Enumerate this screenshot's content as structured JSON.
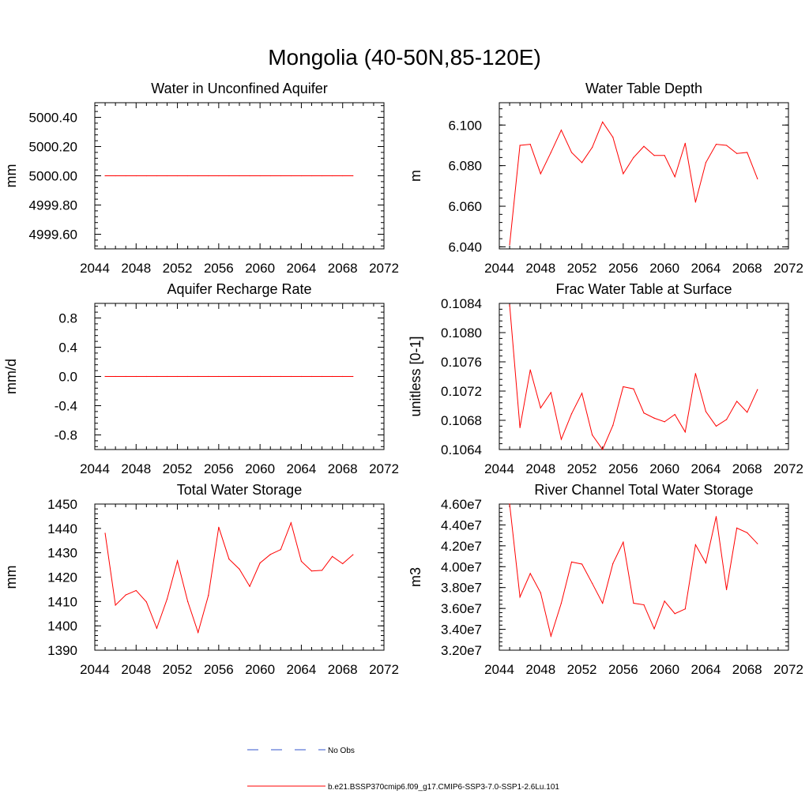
{
  "figure": {
    "title": "Mongolia (40-50N,85-120E)"
  },
  "colors": {
    "model_line": "#ff0000",
    "obs_line": "#3355cc",
    "axis": "#000000"
  },
  "legend": {
    "entries": [
      {
        "label": "No Obs",
        "style": "dashed",
        "color": "#3355cc"
      },
      {
        "label": "b.e21.BSSP370cmip6.f09_g17.CMIP6-SSP3-7.0-SSP1-2.6Lu.101",
        "style": "solid",
        "color": "#ff0000"
      }
    ]
  },
  "chart_data": [
    {
      "type": "line",
      "title": "Water in Unconfined Aquifer",
      "ylabel": "mm",
      "xlim": [
        2044,
        2072
      ],
      "ylim": [
        4999.5,
        5000.5
      ],
      "xticks": [
        2044,
        2048,
        2052,
        2056,
        2060,
        2064,
        2068,
        2072
      ],
      "yticks": [
        4999.6,
        4999.8,
        5000.0,
        5000.2,
        5000.4
      ],
      "ytick_labels": [
        "4999.60",
        "4999.80",
        "5000.00",
        "5000.20",
        "5000.40"
      ],
      "x": [
        2045,
        2046,
        2047,
        2048,
        2049,
        2050,
        2051,
        2052,
        2053,
        2054,
        2055,
        2056,
        2057,
        2058,
        2059,
        2060,
        2061,
        2062,
        2063,
        2064,
        2065,
        2066,
        2067,
        2068,
        2069
      ],
      "series": [
        {
          "values": [
            5000,
            5000,
            5000,
            5000,
            5000,
            5000,
            5000,
            5000,
            5000,
            5000,
            5000,
            5000,
            5000,
            5000,
            5000,
            5000,
            5000,
            5000,
            5000,
            5000,
            5000,
            5000,
            5000,
            5000,
            5000
          ]
        }
      ]
    },
    {
      "type": "line",
      "title": "Water Table Depth",
      "ylabel": "m",
      "xlim": [
        2044,
        2072
      ],
      "ylim": [
        6.039,
        6.111
      ],
      "xticks": [
        2044,
        2048,
        2052,
        2056,
        2060,
        2064,
        2068,
        2072
      ],
      "yticks": [
        6.04,
        6.06,
        6.08,
        6.1
      ],
      "ytick_labels": [
        "6.040",
        "6.060",
        "6.080",
        "6.100"
      ],
      "x": [
        2045,
        2046,
        2047,
        2048,
        2049,
        2050,
        2051,
        2052,
        2053,
        2054,
        2055,
        2056,
        2057,
        2058,
        2059,
        2060,
        2061,
        2062,
        2063,
        2064,
        2065,
        2066,
        2067,
        2068,
        2069
      ],
      "series": [
        {
          "values": [
            6.041,
            6.09,
            6.0905,
            6.076,
            6.0865,
            6.0975,
            6.0865,
            6.0815,
            6.089,
            6.1015,
            6.094,
            6.076,
            6.084,
            6.0895,
            6.085,
            6.085,
            6.0745,
            6.091,
            6.062,
            6.0815,
            6.0905,
            6.09,
            6.086,
            6.0865,
            6.0735
          ]
        }
      ]
    },
    {
      "type": "line",
      "title": "Aquifer Recharge Rate",
      "ylabel": "mm/d",
      "xlim": [
        2044,
        2072
      ],
      "ylim": [
        -1.0,
        1.0
      ],
      "xticks": [
        2044,
        2048,
        2052,
        2056,
        2060,
        2064,
        2068,
        2072
      ],
      "yticks": [
        -0.8,
        -0.4,
        0.0,
        0.4,
        0.8
      ],
      "ytick_labels": [
        "-0.8",
        "-0.4",
        "0.0",
        "0.4",
        "0.8"
      ],
      "x": [
        2045,
        2046,
        2047,
        2048,
        2049,
        2050,
        2051,
        2052,
        2053,
        2054,
        2055,
        2056,
        2057,
        2058,
        2059,
        2060,
        2061,
        2062,
        2063,
        2064,
        2065,
        2066,
        2067,
        2068,
        2069
      ],
      "series": [
        {
          "values": [
            0,
            0,
            0,
            0,
            0,
            0,
            0,
            0,
            0,
            0,
            0,
            0,
            0,
            0,
            0,
            0,
            0,
            0,
            0,
            0,
            0,
            0,
            0,
            0,
            0
          ]
        }
      ]
    },
    {
      "type": "line",
      "title": "Frac Water Table at Surface",
      "ylabel": "unitless [0-1]",
      "xlim": [
        2044,
        2072
      ],
      "ylim": [
        0.1064,
        0.1084
      ],
      "xticks": [
        2044,
        2048,
        2052,
        2056,
        2060,
        2064,
        2068,
        2072
      ],
      "yticks": [
        0.1064,
        0.1068,
        0.1072,
        0.1076,
        0.108,
        0.1084
      ],
      "ytick_labels": [
        "0.1064",
        "0.1068",
        "0.1072",
        "0.1076",
        "0.1080",
        "0.1084"
      ],
      "x": [
        2045,
        2046,
        2047,
        2048,
        2049,
        2050,
        2051,
        2052,
        2053,
        2054,
        2055,
        2056,
        2057,
        2058,
        2059,
        2060,
        2061,
        2062,
        2063,
        2064,
        2065,
        2066,
        2067,
        2068,
        2069
      ],
      "series": [
        {
          "values": [
            0.10838,
            0.1067,
            0.10749,
            0.10697,
            0.10718,
            0.10654,
            0.10689,
            0.10717,
            0.1066,
            0.1064,
            0.10673,
            0.10726,
            0.10723,
            0.1069,
            0.10683,
            0.10678,
            0.10688,
            0.10664,
            0.10744,
            0.10692,
            0.10672,
            0.10681,
            0.10706,
            0.10691,
            0.10722
          ]
        }
      ]
    },
    {
      "type": "line",
      "title": "Total Water Storage",
      "ylabel": "mm",
      "xlim": [
        2044,
        2072
      ],
      "ylim": [
        1390,
        1450
      ],
      "xticks": [
        2044,
        2048,
        2052,
        2056,
        2060,
        2064,
        2068,
        2072
      ],
      "yticks": [
        1390,
        1400,
        1410,
        1420,
        1430,
        1440,
        1450
      ],
      "ytick_labels": [
        "1390",
        "1400",
        "1410",
        "1420",
        "1430",
        "1440",
        "1450"
      ],
      "x": [
        2045,
        2046,
        2047,
        2048,
        2049,
        2050,
        2051,
        2052,
        2053,
        2054,
        2055,
        2056,
        2057,
        2058,
        2059,
        2060,
        2061,
        2062,
        2063,
        2064,
        2065,
        2066,
        2067,
        2068,
        2069
      ],
      "series": [
        {
          "values": [
            1438,
            1408.5,
            1412.7,
            1414.5,
            1409.8,
            1399,
            1411,
            1426.7,
            1410,
            1397.3,
            1412.5,
            1440.5,
            1427.4,
            1423.3,
            1416.2,
            1425.8,
            1429.3,
            1431.3,
            1442.3,
            1426.5,
            1422.5,
            1422.8,
            1428.5,
            1425.5,
            1429.2
          ]
        }
      ]
    },
    {
      "type": "line",
      "title": "River Channel Total Water Storage",
      "ylabel": "m3",
      "xlim": [
        2044,
        2072
      ],
      "ylim": [
        32000000,
        46000000
      ],
      "xticks": [
        2044,
        2048,
        2052,
        2056,
        2060,
        2064,
        2068,
        2072
      ],
      "yticks": [
        32000000,
        34000000,
        36000000,
        38000000,
        40000000,
        42000000,
        44000000,
        46000000
      ],
      "ytick_labels": [
        "3.20e7",
        "3.40e7",
        "3.60e7",
        "3.80e7",
        "4.00e7",
        "4.20e7",
        "4.40e7",
        "4.60e7"
      ],
      "x": [
        2045,
        2046,
        2047,
        2048,
        2049,
        2050,
        2051,
        2052,
        2053,
        2054,
        2055,
        2056,
        2057,
        2058,
        2059,
        2060,
        2061,
        2062,
        2063,
        2064,
        2065,
        2066,
        2067,
        2068,
        2069
      ],
      "series": [
        {
          "values": [
            46000000,
            37100000,
            39350000,
            37500000,
            33350000,
            36500000,
            40450000,
            40250000,
            38400000,
            36500000,
            40300000,
            42350000,
            36500000,
            36350000,
            34050000,
            36700000,
            35500000,
            35950000,
            42100000,
            40350000,
            44800000,
            37800000,
            43700000,
            43250000,
            42200000
          ]
        }
      ]
    }
  ]
}
